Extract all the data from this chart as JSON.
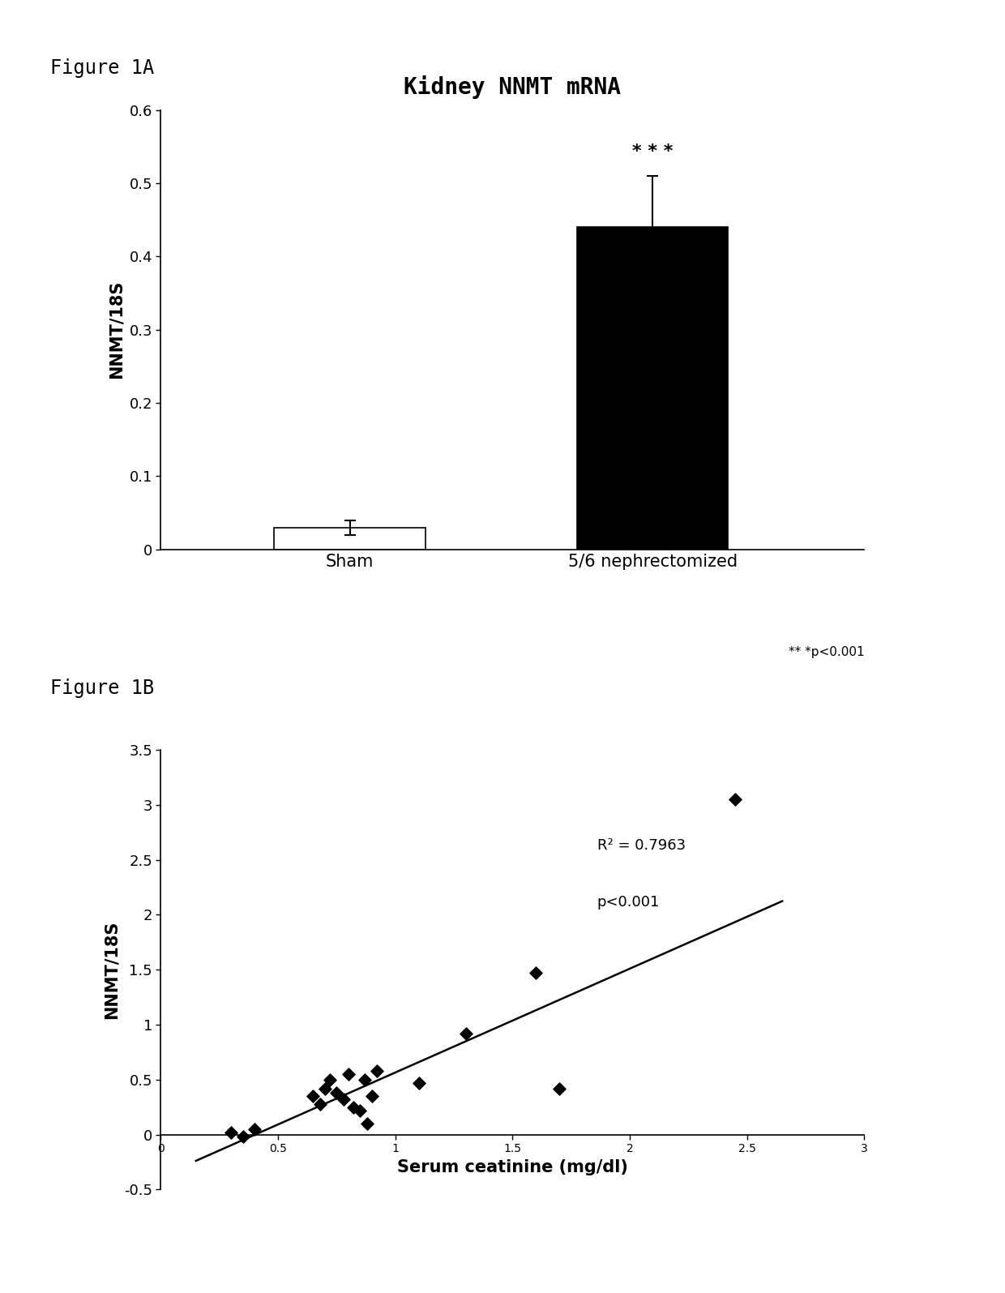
{
  "fig1A": {
    "title": "Kidney NNMT mRNA",
    "figure_label": "Figure 1A",
    "categories": [
      "Sham",
      "5/6 nephrectomized"
    ],
    "values": [
      0.03,
      0.44
    ],
    "errors": [
      0.01,
      0.07
    ],
    "bar_colors": [
      "white",
      "black"
    ],
    "bar_edgecolors": [
      "black",
      "black"
    ],
    "ylabel": "NNMT/18S",
    "ylim": [
      0,
      0.6
    ],
    "yticks": [
      0,
      0.1,
      0.2,
      0.3,
      0.4,
      0.5,
      0.6
    ],
    "ytick_labels": [
      "0",
      "0.1",
      "0.2",
      "0.3",
      "0.4",
      "0.5",
      "0.6"
    ],
    "significance_label": "* * *",
    "pvalue_label": "** *p<0.001"
  },
  "fig1B": {
    "figure_label": "Figure 1B",
    "scatter_x": [
      0.3,
      0.35,
      0.4,
      0.65,
      0.68,
      0.7,
      0.72,
      0.75,
      0.78,
      0.8,
      0.82,
      0.85,
      0.87,
      0.88,
      0.9,
      0.92,
      1.1,
      1.3,
      1.6,
      1.7,
      2.45
    ],
    "scatter_y": [
      0.02,
      -0.02,
      0.05,
      0.35,
      0.28,
      0.42,
      0.5,
      0.38,
      0.32,
      0.55,
      0.25,
      0.22,
      0.5,
      0.1,
      0.35,
      0.58,
      0.47,
      0.92,
      1.47,
      0.42,
      3.05
    ],
    "regression_slope": 0.945,
    "regression_intercept": -0.38,
    "regression_x_start": 0.15,
    "regression_x_end": 2.65,
    "r2_label": "R² = 0.7963",
    "p_label": "p<0.001",
    "xlabel": "Serum ceatinine (mg/dl)",
    "ylabel": "NNMT/18S",
    "xlim": [
      0,
      3
    ],
    "ylim": [
      -0.5,
      3.5
    ],
    "yticks": [
      -0.5,
      0,
      0.5,
      1.0,
      1.5,
      2.0,
      2.5,
      3.0,
      3.5
    ],
    "ytick_labels": [
      "-0.5",
      "0",
      "0.5",
      "1",
      "1.5",
      "2",
      "2.5",
      "3",
      "3.5"
    ],
    "xticks": [
      0,
      0.5,
      1.0,
      1.5,
      2.0,
      2.5,
      3.0
    ],
    "xtick_labels": [
      "0",
      "0.5",
      "1",
      "1.5",
      "2",
      "2.5",
      "3"
    ]
  },
  "figure_label_fontsize": 17,
  "title_fontsize": 20,
  "axis_label_fontsize": 15,
  "tick_fontsize": 13
}
